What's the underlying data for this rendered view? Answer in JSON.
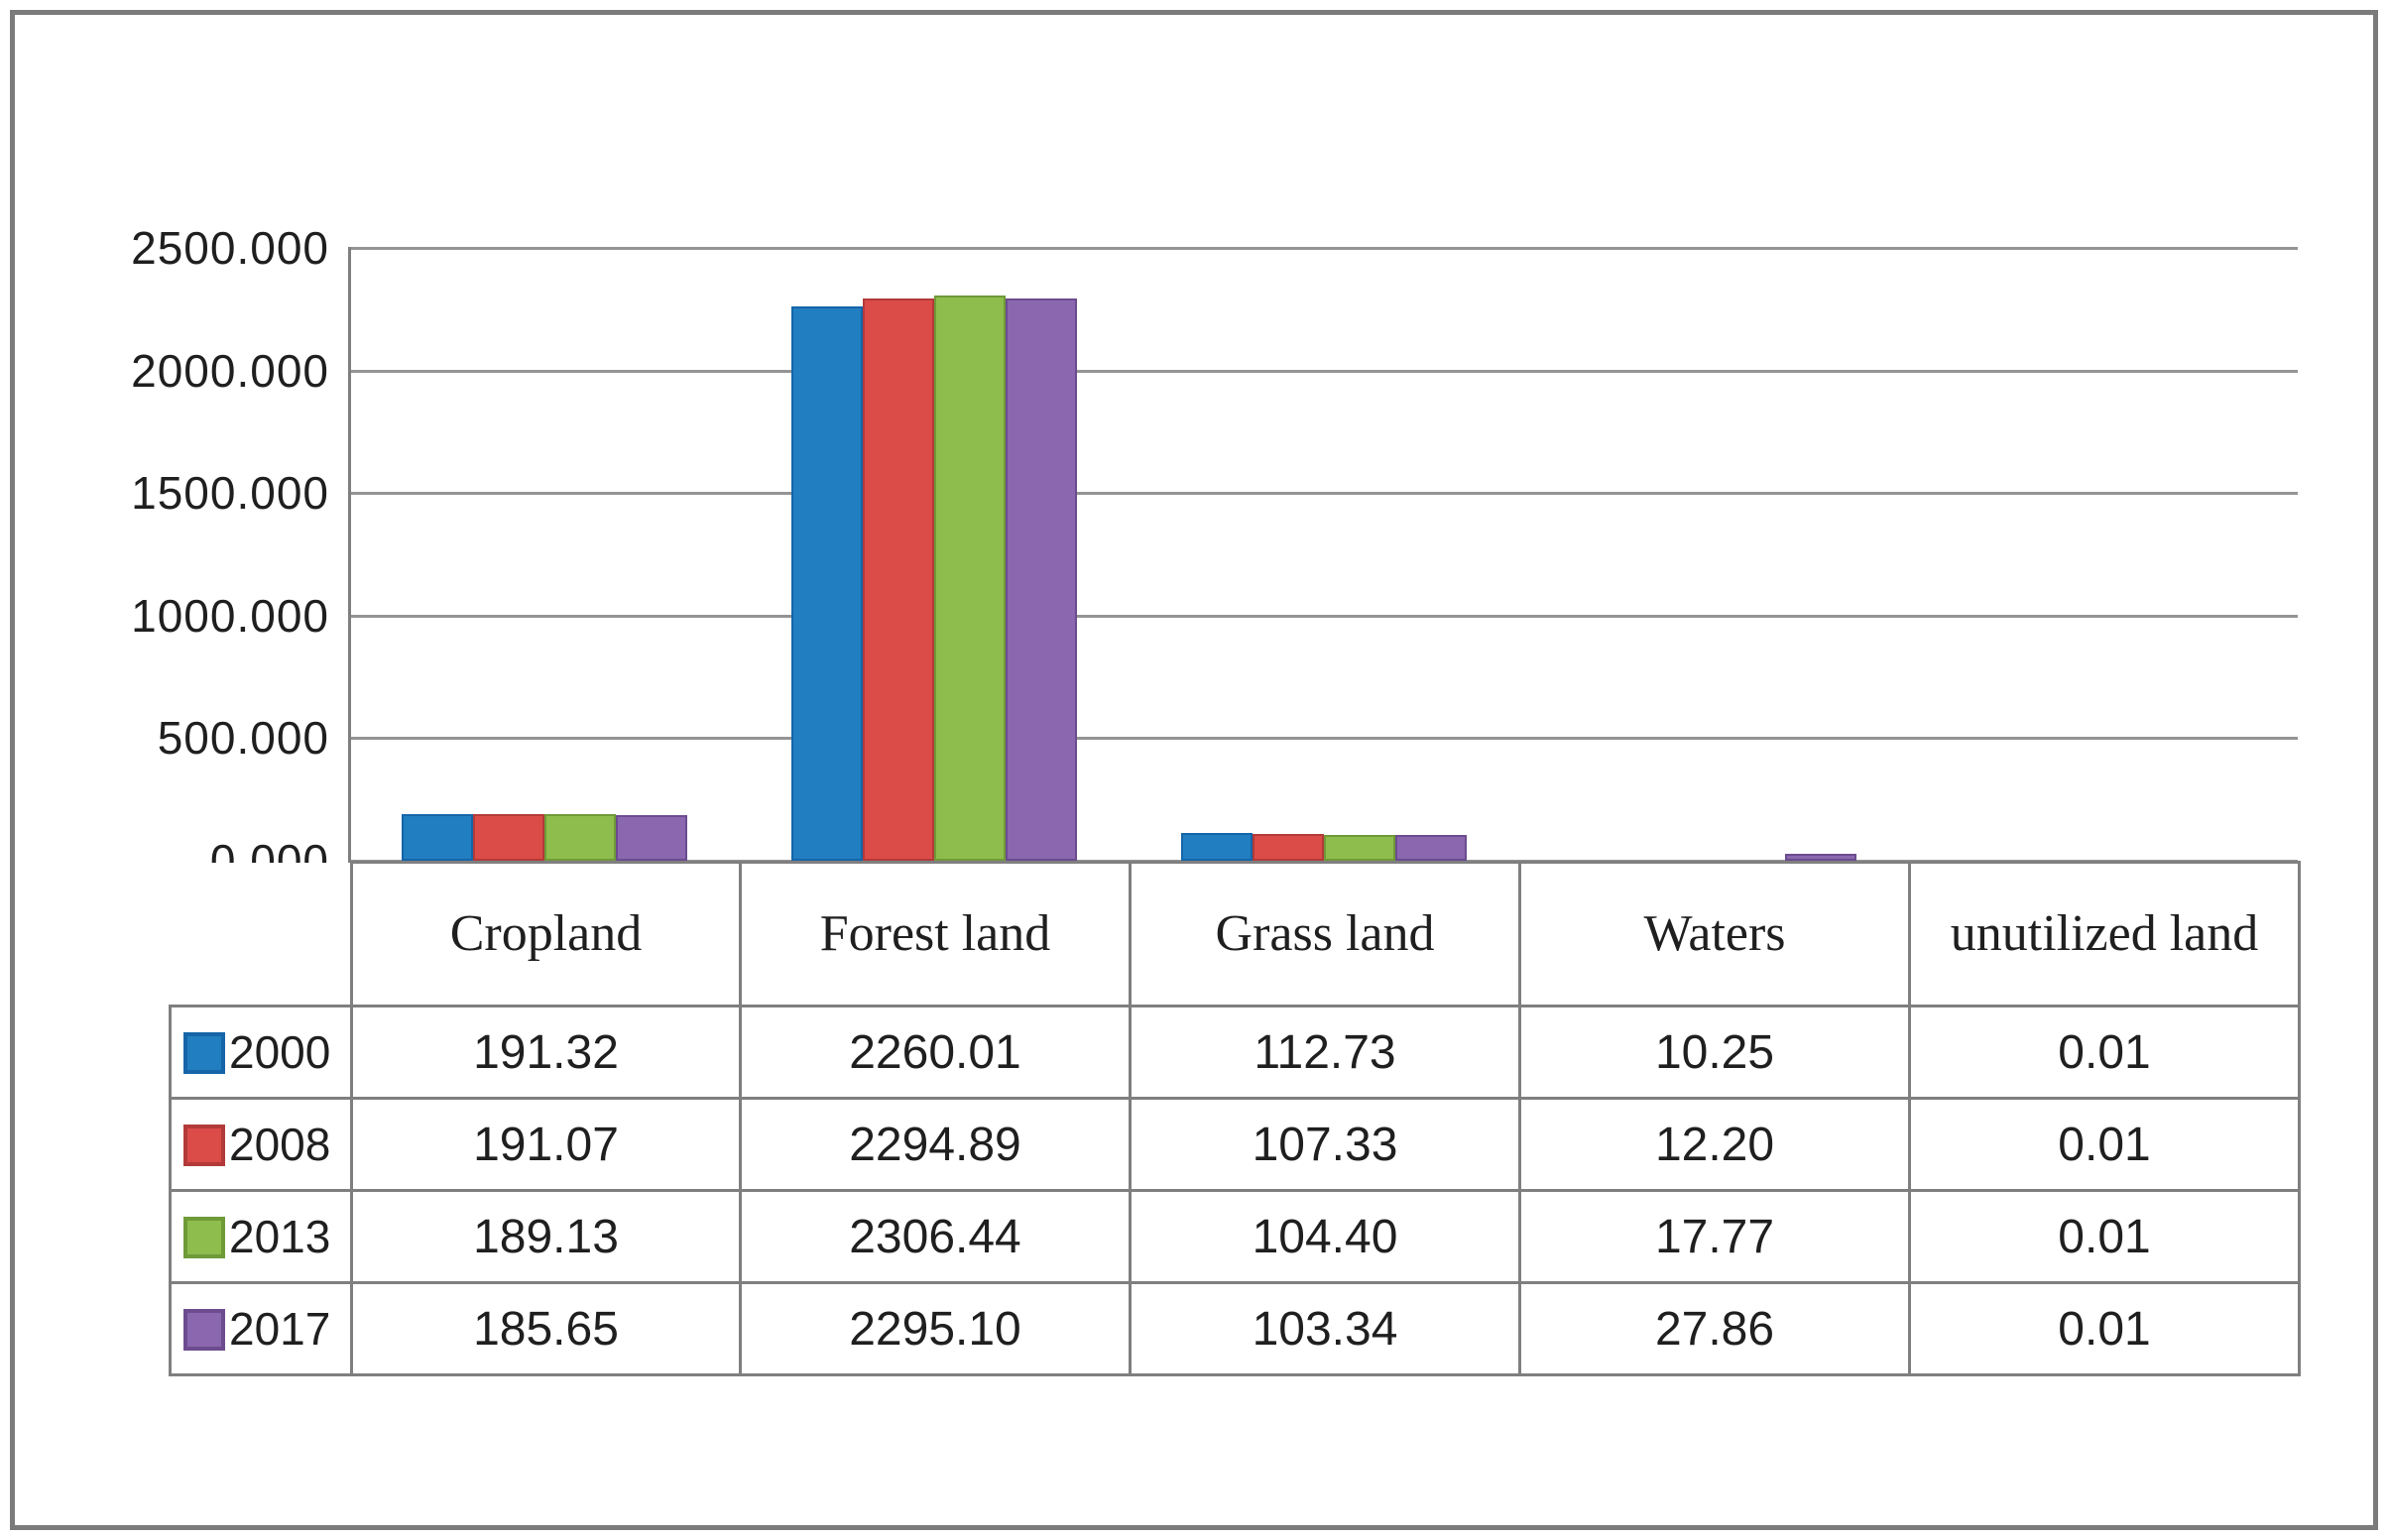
{
  "figure": {
    "background": "#ffffff",
    "border_color": "#7b7b7b"
  },
  "chart_data": {
    "type": "bar",
    "title": "",
    "xlabel": "",
    "ylabel": "",
    "categories": [
      "Cropland",
      "Forest land",
      "Grass land",
      "Waters",
      "unutilized land"
    ],
    "series": [
      {
        "name": "2000",
        "color": "#217EC0",
        "edge_color": "#1565A8",
        "values": [
          191.32,
          2260.01,
          112.73,
          10.25,
          0.01
        ]
      },
      {
        "name": "2008",
        "color": "#DB4B48",
        "edge_color": "#B23A38",
        "values": [
          191.07,
          2294.89,
          107.33,
          12.2,
          0.01
        ]
      },
      {
        "name": "2013",
        "color": "#8EBD4D",
        "edge_color": "#6F9A38",
        "values": [
          189.13,
          2306.44,
          104.4,
          17.77,
          0.01
        ]
      },
      {
        "name": "2017",
        "color": "#8A67AE",
        "edge_color": "#6C4C8F",
        "values": [
          185.65,
          2295.1,
          103.34,
          27.86,
          0.01
        ]
      }
    ],
    "ylim": [
      0,
      2500
    ],
    "ytick_values": [
      2500,
      2000,
      1500,
      1000,
      500,
      0
    ],
    "ytick_labels": [
      "2500.000",
      "2000.000",
      "1500.000",
      "1000.000",
      "500.000",
      "0.000"
    ],
    "grid": true,
    "gridline_color": "#949494",
    "axis_line_color": "#7f7f7f",
    "legend_position": "data-table-left-column"
  },
  "table": {
    "border_color": "#7f7f7f",
    "column_headers": [
      "Cropland",
      "Forest land",
      "Grass land",
      "Waters",
      "unutilized land"
    ],
    "rows": [
      {
        "year": "2000",
        "swatch_color": "#217EC0",
        "cells": [
          "191.32",
          "2260.01",
          "112.73",
          "10.25",
          "0.01"
        ]
      },
      {
        "year": "2008",
        "swatch_color": "#DB4B48",
        "cells": [
          "191.07",
          "2294.89",
          "107.33",
          "12.20",
          "0.01"
        ]
      },
      {
        "year": "2013",
        "swatch_color": "#8EBD4D",
        "cells": [
          "189.13",
          "2306.44",
          "104.40",
          "17.77",
          "0.01"
        ]
      },
      {
        "year": "2017",
        "swatch_color": "#8A67AE",
        "cells": [
          "185.65",
          "2295.10",
          "103.34",
          "27.86",
          "0.01"
        ]
      }
    ]
  }
}
